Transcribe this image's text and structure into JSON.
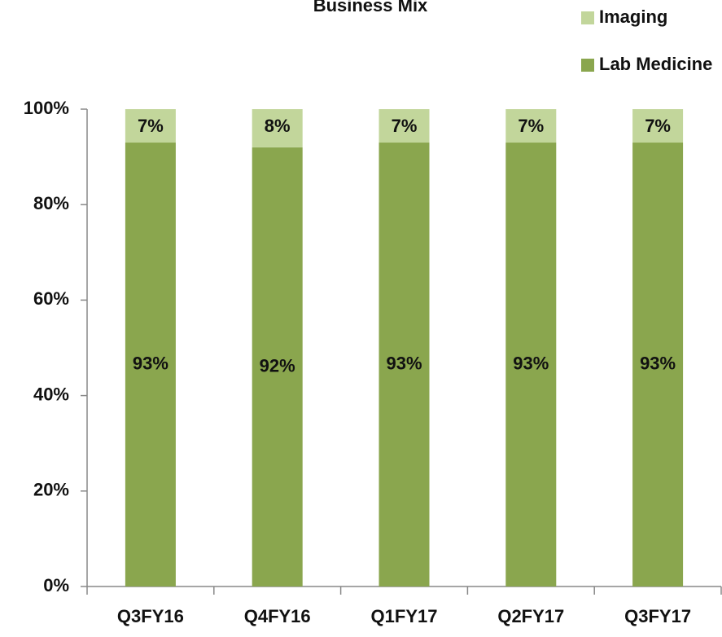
{
  "chart_data": {
    "type": "stacked_bar",
    "title": "Business Mix",
    "categories": [
      "Q3FY16",
      "Q4FY16",
      "Q1FY17",
      "Q2FY17",
      "Q3FY17"
    ],
    "series": [
      {
        "name": "Lab Medicine",
        "color": "#8aa64e",
        "values": [
          93,
          92,
          93,
          93,
          93
        ],
        "value_labels": [
          "93%",
          "92%",
          "93%",
          "93%",
          "93%"
        ]
      },
      {
        "name": "Imaging",
        "color": "#c2d69b",
        "values": [
          7,
          8,
          7,
          7,
          7
        ],
        "value_labels": [
          "7%",
          "8%",
          "7%",
          "7%",
          "7%"
        ]
      }
    ],
    "ylim": [
      0,
      100
    ],
    "yticks": [
      {
        "value": 0,
        "label": "0%"
      },
      {
        "value": 20,
        "label": "20%"
      },
      {
        "value": 40,
        "label": "40%"
      },
      {
        "value": 60,
        "label": "60%"
      },
      {
        "value": 80,
        "label": "80%"
      },
      {
        "value": 100,
        "label": "100%"
      }
    ],
    "legend": "top-right"
  }
}
